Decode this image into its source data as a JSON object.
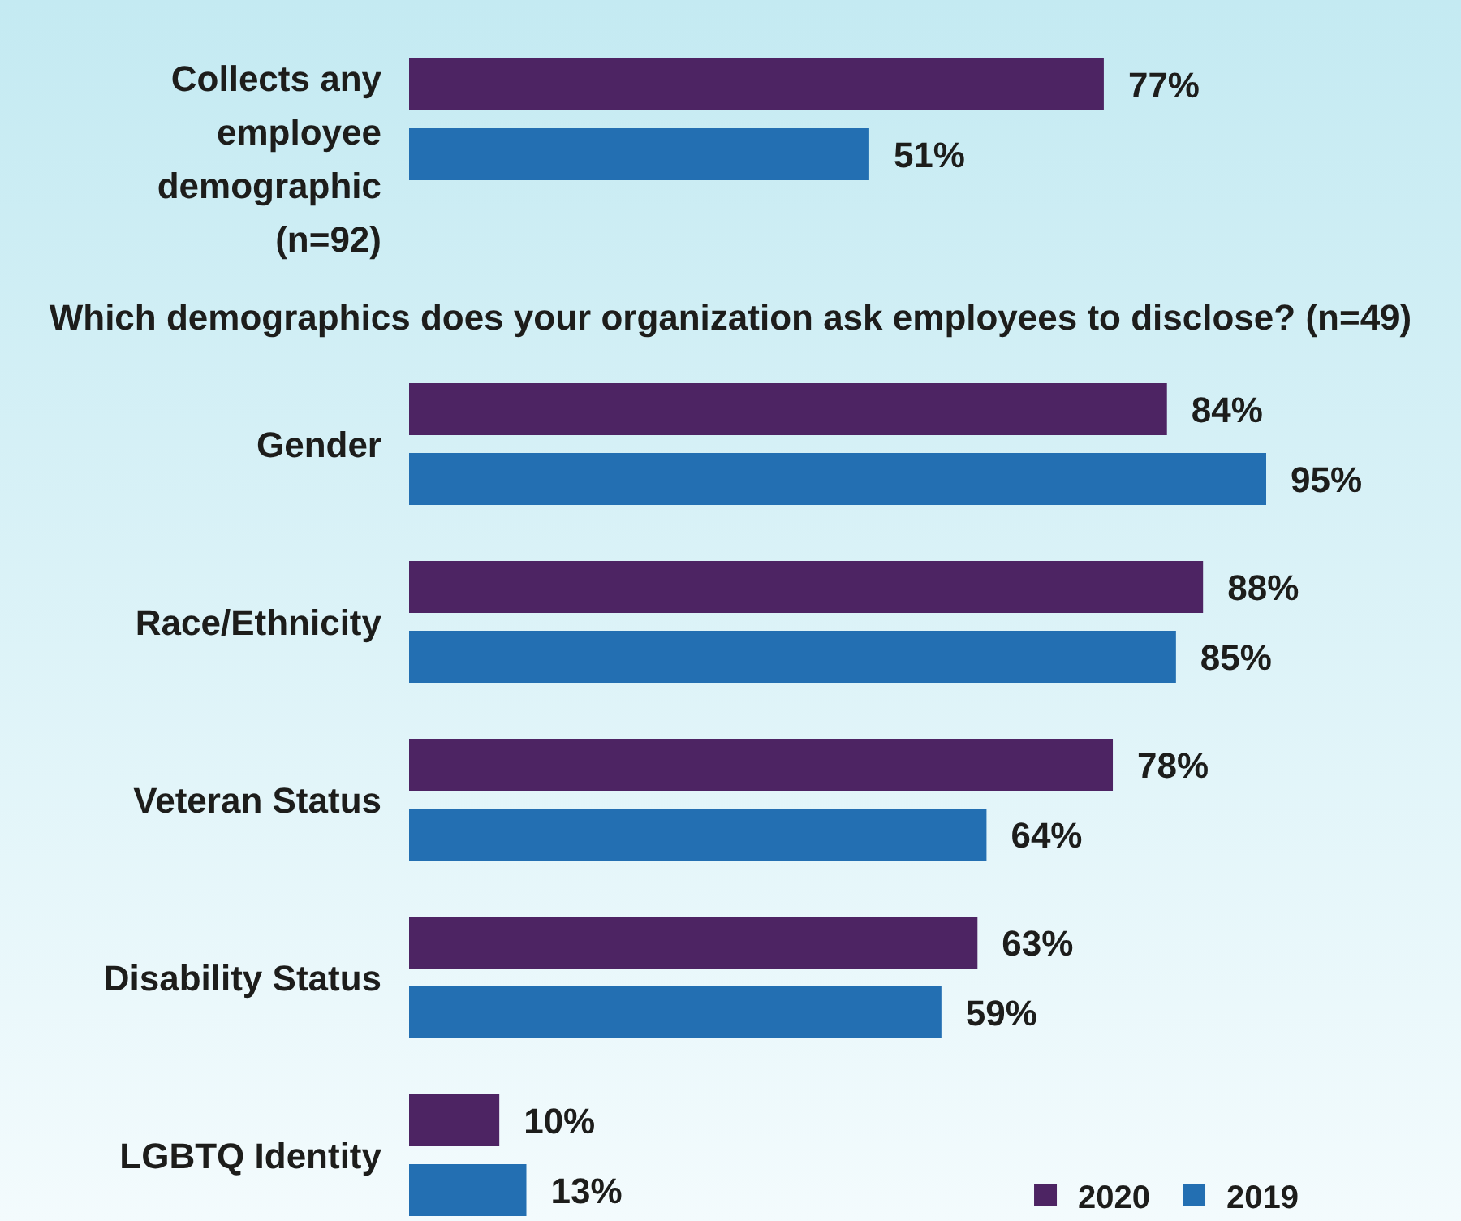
{
  "chart_data": [
    {
      "type": "bar",
      "orientation": "horizontal",
      "categories": [
        "Collects any employee demographic (n=92)"
      ],
      "series": [
        {
          "color": "#4d2463",
          "values": [
            77
          ],
          "value_labels": [
            "77%"
          ]
        },
        {
          "color": "#236fb2",
          "values": [
            51
          ],
          "value_labels": [
            "51%"
          ]
        }
      ]
    },
    {
      "type": "bar",
      "orientation": "horizontal",
      "title": "Which demographics does your organization ask employees to disclose? (n=49)",
      "categories": [
        "Gender",
        "Race/Ethnicity",
        "Veteran Status",
        "Disability Status",
        "LGBTQ Identity"
      ],
      "series": [
        {
          "name": "2020",
          "color": "#4d2463",
          "values": [
            84,
            88,
            78,
            63,
            10
          ],
          "value_labels": [
            "84%",
            "88%",
            "78%",
            "63%",
            "10%"
          ]
        },
        {
          "name": "2019",
          "color": "#236fb2",
          "values": [
            95,
            85,
            64,
            59,
            13
          ],
          "value_labels": [
            "95%",
            "85%",
            "64%",
            "59%",
            "13%"
          ]
        }
      ],
      "legend": "bottom right"
    }
  ]
}
